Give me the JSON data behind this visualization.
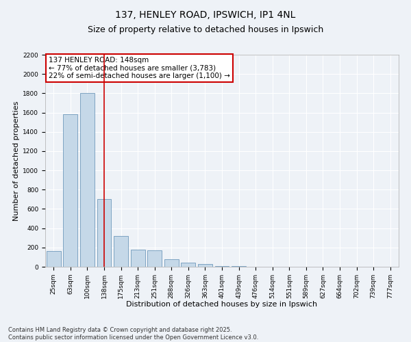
{
  "title": "137, HENLEY ROAD, IPSWICH, IP1 4NL",
  "subtitle": "Size of property relative to detached houses in Ipswich",
  "xlabel": "Distribution of detached houses by size in Ipswich",
  "ylabel": "Number of detached properties",
  "categories": [
    "25sqm",
    "63sqm",
    "100sqm",
    "138sqm",
    "175sqm",
    "213sqm",
    "251sqm",
    "288sqm",
    "326sqm",
    "363sqm",
    "401sqm",
    "439sqm",
    "476sqm",
    "514sqm",
    "551sqm",
    "589sqm",
    "627sqm",
    "664sqm",
    "702sqm",
    "739sqm",
    "777sqm"
  ],
  "values": [
    160,
    1580,
    1800,
    700,
    320,
    175,
    170,
    80,
    40,
    25,
    10,
    5,
    2,
    1,
    0,
    0,
    0,
    0,
    0,
    0,
    0
  ],
  "bar_color": "#c5d8e8",
  "bar_edge_color": "#5a8ab0",
  "vline_x_index": 3,
  "vline_color": "#cc0000",
  "annotation_line1": "137 HENLEY ROAD: 148sqm",
  "annotation_line2": "← 77% of detached houses are smaller (3,783)",
  "annotation_line3": "22% of semi-detached houses are larger (1,100) →",
  "annotation_box_color": "#cc0000",
  "ylim": [
    0,
    2200
  ],
  "yticks": [
    0,
    200,
    400,
    600,
    800,
    1000,
    1200,
    1400,
    1600,
    1800,
    2000,
    2200
  ],
  "background_color": "#eef2f7",
  "grid_color": "#ffffff",
  "footer_text": "Contains HM Land Registry data © Crown copyright and database right 2025.\nContains public sector information licensed under the Open Government Licence v3.0.",
  "title_fontsize": 10,
  "subtitle_fontsize": 9,
  "axis_label_fontsize": 8,
  "tick_fontsize": 6.5,
  "annotation_fontsize": 7.5,
  "footer_fontsize": 6
}
